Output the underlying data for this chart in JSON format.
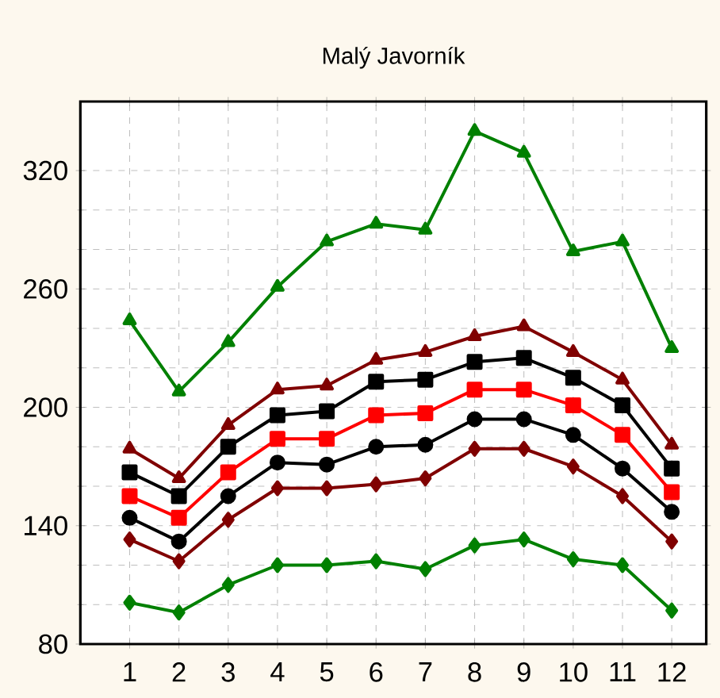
{
  "chart_data": {
    "type": "line",
    "title": "Malý Javorník",
    "x": [
      1,
      2,
      3,
      4,
      5,
      6,
      7,
      8,
      9,
      10,
      11,
      12
    ],
    "xlim": [
      0,
      12.7
    ],
    "xticks": [
      1,
      2,
      3,
      4,
      5,
      6,
      7,
      8,
      9,
      10,
      11,
      12
    ],
    "ylim": [
      80,
      355
    ],
    "yticks": [
      80,
      140,
      200,
      260,
      320
    ],
    "grid": true,
    "line_style": "solid",
    "series": [
      {
        "color": "#008000",
        "marker": "triangle",
        "values": [
          244,
          208,
          233,
          261,
          284,
          293,
          290,
          340,
          329,
          279,
          284,
          230
        ]
      },
      {
        "color": "#800000",
        "marker": "triangle",
        "values": [
          179,
          164,
          191,
          209,
          211,
          224,
          228,
          236,
          241,
          228,
          214,
          181
        ]
      },
      {
        "color": "#000000",
        "marker": "square",
        "values": [
          167,
          155,
          180,
          196,
          198,
          213,
          214,
          223,
          225,
          215,
          201,
          169
        ]
      },
      {
        "color": "#ff0000",
        "marker": "square",
        "values": [
          155,
          144,
          167,
          184,
          184,
          196,
          197,
          209,
          209,
          201,
          186,
          157
        ]
      },
      {
        "color": "#000000",
        "marker": "circle",
        "values": [
          144,
          132,
          155,
          172,
          171,
          180,
          181,
          194,
          194,
          186,
          169,
          147
        ]
      },
      {
        "color": "#800000",
        "marker": "diamond",
        "values": [
          133,
          122,
          143,
          159,
          159,
          161,
          164,
          179,
          179,
          170,
          155,
          132
        ]
      },
      {
        "color": "#008000",
        "marker": "diamond",
        "values": [
          101,
          96,
          110,
          120,
          120,
          122,
          118,
          130,
          133,
          123,
          120,
          97
        ]
      }
    ]
  }
}
